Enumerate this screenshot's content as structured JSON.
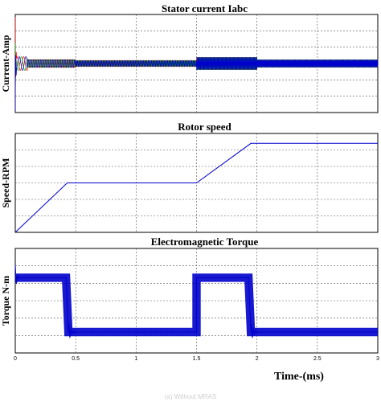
{
  "figure": {
    "xlabel": "Time-(ms)",
    "caption": "(a) Without MRAS"
  },
  "chart_data": [
    {
      "type": "line",
      "title": "Stator current Iabc",
      "ylabel": "Current-Amp",
      "xlim": [
        0,
        3
      ],
      "ylim": [
        -1,
        1
      ],
      "x_ticks": [
        "",
        "",
        "",
        "",
        "",
        "",
        ""
      ],
      "grid": true,
      "series": [
        {
          "color": "#ff0000",
          "waveform": "three-phase sinusoid, phase A",
          "startup_peak": 0.95
        },
        {
          "color": "#00aa00",
          "waveform": "three-phase sinusoid, phase B",
          "startup_peak": 0.3
        },
        {
          "color": "#0000cc",
          "waveform": "three-phase sinusoid, phase C",
          "startup_peak": -0.85
        }
      ],
      "amplitude_segments": [
        {
          "x0": 0.0,
          "x1": 0.1,
          "amp": 0.14,
          "freq": 18
        },
        {
          "x0": 0.1,
          "x1": 0.5,
          "amp": 0.08,
          "freq": 50
        },
        {
          "x0": 0.5,
          "x1": 1.5,
          "amp": 0.06,
          "freq": 75
        },
        {
          "x0": 1.5,
          "x1": 2.0,
          "amp": 0.13,
          "freq": 120
        },
        {
          "x0": 2.0,
          "x1": 3.0,
          "amp": 0.08,
          "freq": 140
        }
      ]
    },
    {
      "type": "line",
      "title": "Rotor speed",
      "ylabel": "Speed-RPM",
      "xlim": [
        0,
        3
      ],
      "ylim": [
        0,
        1
      ],
      "x_ticks": [
        "",
        "",
        "",
        "",
        "",
        "",
        ""
      ],
      "grid": true,
      "series": [
        {
          "color": "#0000cc",
          "x": [
            0,
            0.43,
            0.47,
            1.5,
            1.95,
            3.0
          ],
          "y": [
            0,
            0.5,
            0.5,
            0.5,
            0.9,
            0.9
          ]
        }
      ]
    },
    {
      "type": "line",
      "title": "Electromagnetic Torque",
      "ylabel": "Torque N-m",
      "xlim": [
        0,
        3
      ],
      "ylim": [
        0,
        1
      ],
      "x_ticks": [
        "0",
        "0.5",
        "1",
        "1.5",
        "2",
        "2.5",
        "3"
      ],
      "grid": true,
      "series": [
        {
          "color": "#0000cc",
          "x": [
            0,
            0.42,
            0.44,
            1.5,
            1.5,
            1.93,
            1.95,
            3.0
          ],
          "y": [
            0.72,
            0.72,
            0.2,
            0.2,
            0.72,
            0.72,
            0.2,
            0.2
          ],
          "ripple": 0.04
        }
      ]
    }
  ]
}
